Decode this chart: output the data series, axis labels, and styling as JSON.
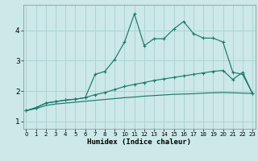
{
  "title": "",
  "xlabel": "Humidex (Indice chaleur)",
  "bg_color": "#cce8e8",
  "grid_color": "#aed4d4",
  "line_color": "#1a7a6a",
  "x_ticks": [
    0,
    1,
    2,
    3,
    4,
    5,
    6,
    7,
    8,
    9,
    10,
    11,
    12,
    13,
    14,
    15,
    16,
    17,
    18,
    19,
    20,
    21,
    22,
    23
  ],
  "y_ticks": [
    1,
    2,
    3,
    4
  ],
  "xlim": [
    -0.3,
    23.3
  ],
  "ylim": [
    0.75,
    4.85
  ],
  "series1_x": [
    0,
    1,
    2,
    3,
    4,
    5,
    6,
    7,
    8,
    9,
    10,
    11,
    12,
    13,
    14,
    15,
    16,
    17,
    18,
    19,
    20,
    21,
    22,
    23
  ],
  "series1_y": [
    1.35,
    1.45,
    1.6,
    1.65,
    1.7,
    1.73,
    1.78,
    2.55,
    2.65,
    3.05,
    3.62,
    4.55,
    3.5,
    3.73,
    3.73,
    4.05,
    4.3,
    3.9,
    3.75,
    3.75,
    3.62,
    2.62,
    2.55,
    1.92
  ],
  "series2_x": [
    0,
    1,
    2,
    3,
    4,
    5,
    6,
    7,
    8,
    9,
    10,
    11,
    12,
    13,
    14,
    15,
    16,
    17,
    18,
    19,
    20,
    21,
    22,
    23
  ],
  "series2_y": [
    1.35,
    1.45,
    1.6,
    1.65,
    1.7,
    1.73,
    1.78,
    1.88,
    1.95,
    2.05,
    2.15,
    2.22,
    2.28,
    2.35,
    2.4,
    2.45,
    2.5,
    2.55,
    2.6,
    2.65,
    2.68,
    2.38,
    2.62,
    1.92
  ],
  "series3_x": [
    0,
    1,
    2,
    3,
    4,
    5,
    6,
    7,
    8,
    9,
    10,
    11,
    12,
    13,
    14,
    15,
    16,
    17,
    18,
    19,
    20,
    21,
    22,
    23
  ],
  "series3_y": [
    1.35,
    1.42,
    1.52,
    1.57,
    1.6,
    1.63,
    1.66,
    1.69,
    1.72,
    1.75,
    1.78,
    1.8,
    1.83,
    1.85,
    1.87,
    1.89,
    1.9,
    1.91,
    1.93,
    1.94,
    1.95,
    1.94,
    1.93,
    1.92
  ]
}
